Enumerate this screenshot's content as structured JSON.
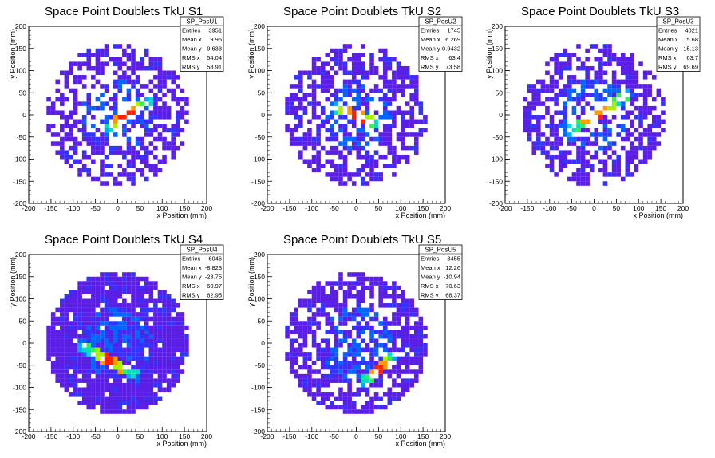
{
  "chart_data": [
    {
      "type": "heatmap",
      "title": "Space Point Doublets TkU S1",
      "xlabel": "x Position (mm)",
      "ylabel": "y Position (mm)",
      "xlim": [
        -200,
        200
      ],
      "ylim": [
        -200,
        200
      ],
      "xticks": [
        -200,
        -150,
        -100,
        -50,
        0,
        50,
        100,
        150,
        200
      ],
      "yticks": [
        -200,
        -150,
        -100,
        -50,
        0,
        50,
        100,
        150,
        200
      ],
      "stats": {
        "name": "SP_PosU1",
        "rows": [
          {
            "label": "Entries",
            "value": "3951"
          },
          {
            "label": "Mean x",
            "value": "9.95"
          },
          {
            "label": "Mean y",
            "value": "9.633"
          },
          {
            "label": "RMS x",
            "value": "54.04"
          },
          {
            "label": "RMS y",
            "value": "58.91"
          }
        ]
      },
      "pattern": {
        "seed": 11,
        "line_angle_deg": 35,
        "line_offset": [
          20,
          0
        ],
        "line_half_length": 70,
        "fill": 0.55
      }
    },
    {
      "type": "heatmap",
      "title": "Space Point Doublets TkU S2",
      "xlabel": "x Position (mm)",
      "ylabel": "y Position (mm)",
      "xlim": [
        -200,
        200
      ],
      "ylim": [
        -200,
        200
      ],
      "xticks": [
        -200,
        -150,
        -100,
        -50,
        0,
        50,
        100,
        150,
        200
      ],
      "yticks": [
        -200,
        -150,
        -100,
        -50,
        0,
        50,
        100,
        150,
        200
      ],
      "stats": {
        "name": "SP_PosU2",
        "rows": [
          {
            "label": "Entries",
            "value": "1745"
          },
          {
            "label": "Mean x",
            "value": "6.269"
          },
          {
            "label": "Mean y",
            "value": "-0.9432"
          },
          {
            "label": "RMS x",
            "value": "63.4"
          },
          {
            "label": "RMS y",
            "value": "73.58"
          }
        ]
      },
      "pattern": {
        "seed": 23,
        "line_angle_deg": -20,
        "line_offset": [
          0,
          0
        ],
        "line_half_length": 60,
        "fill": 0.6
      }
    },
    {
      "type": "heatmap",
      "title": "Space Point Doublets TkU S3",
      "xlabel": "x Position (mm)",
      "ylabel": "y Position (mm)",
      "xlim": [
        -200,
        200
      ],
      "ylim": [
        -200,
        200
      ],
      "xticks": [
        -200,
        -150,
        -100,
        -50,
        0,
        50,
        100,
        150,
        200
      ],
      "yticks": [
        -200,
        -150,
        -100,
        -50,
        0,
        50,
        100,
        150,
        200
      ],
      "stats": {
        "name": "SP_PosU3",
        "rows": [
          {
            "label": "Entries",
            "value": "4021"
          },
          {
            "label": "Mean x",
            "value": "15.68"
          },
          {
            "label": "Mean y",
            "value": "15.13"
          },
          {
            "label": "RMS x",
            "value": "63.7"
          },
          {
            "label": "RMS y",
            "value": "69.69"
          }
        ]
      },
      "pattern": {
        "seed": 37,
        "line_angle_deg": 33,
        "line_offset": [
          10,
          5
        ],
        "line_half_length": 90,
        "fill": 0.6
      }
    },
    {
      "type": "heatmap",
      "title": "Space Point Doublets TkU S4",
      "xlabel": "x Position (mm)",
      "ylabel": "y Position (mm)",
      "xlim": [
        -200,
        200
      ],
      "ylim": [
        -200,
        200
      ],
      "xticks": [
        -200,
        -150,
        -100,
        -50,
        0,
        50,
        100,
        150,
        200
      ],
      "yticks": [
        -200,
        -150,
        -100,
        -50,
        0,
        50,
        100,
        150,
        200
      ],
      "stats": {
        "name": "SP_PosU4",
        "rows": [
          {
            "label": "Entries",
            "value": "6046"
          },
          {
            "label": "Mean x",
            "value": "-8.823"
          },
          {
            "label": "Mean y",
            "value": "-23.75"
          },
          {
            "label": "RMS x",
            "value": "60.97"
          },
          {
            "label": "RMS y",
            "value": "62.95"
          }
        ]
      },
      "pattern": {
        "seed": 53,
        "line_angle_deg": -28,
        "line_offset": [
          -20,
          -40
        ],
        "line_half_length": 80,
        "fill": 0.9
      }
    },
    {
      "type": "heatmap",
      "title": "Space Point Doublets TkU S5",
      "xlabel": "x Position (mm)",
      "ylabel": "y Position (mm)",
      "xlim": [
        -200,
        200
      ],
      "ylim": [
        -200,
        200
      ],
      "xticks": [
        -200,
        -150,
        -100,
        -50,
        0,
        50,
        100,
        150,
        200
      ],
      "yticks": [
        -200,
        -150,
        -100,
        -50,
        0,
        50,
        100,
        150,
        200
      ],
      "stats": {
        "name": "SP_PosU5",
        "rows": [
          {
            "label": "Entries",
            "value": "3455"
          },
          {
            "label": "Mean x",
            "value": "12.26"
          },
          {
            "label": "Mean y",
            "value": "-10.94"
          },
          {
            "label": "RMS x",
            "value": "70.63"
          },
          {
            "label": "RMS y",
            "value": "68.37"
          }
        ]
      },
      "pattern": {
        "seed": 71,
        "line_angle_deg": 40,
        "line_offset": [
          50,
          -60
        ],
        "line_half_length": 50,
        "fill": 0.7
      }
    }
  ],
  "colors": {
    "palette": [
      "#5a1ee6",
      "#3333ff",
      "#0066ff",
      "#00aaff",
      "#00e0c0",
      "#33ee55",
      "#aaee00",
      "#ff9900",
      "#ff2200"
    ]
  }
}
